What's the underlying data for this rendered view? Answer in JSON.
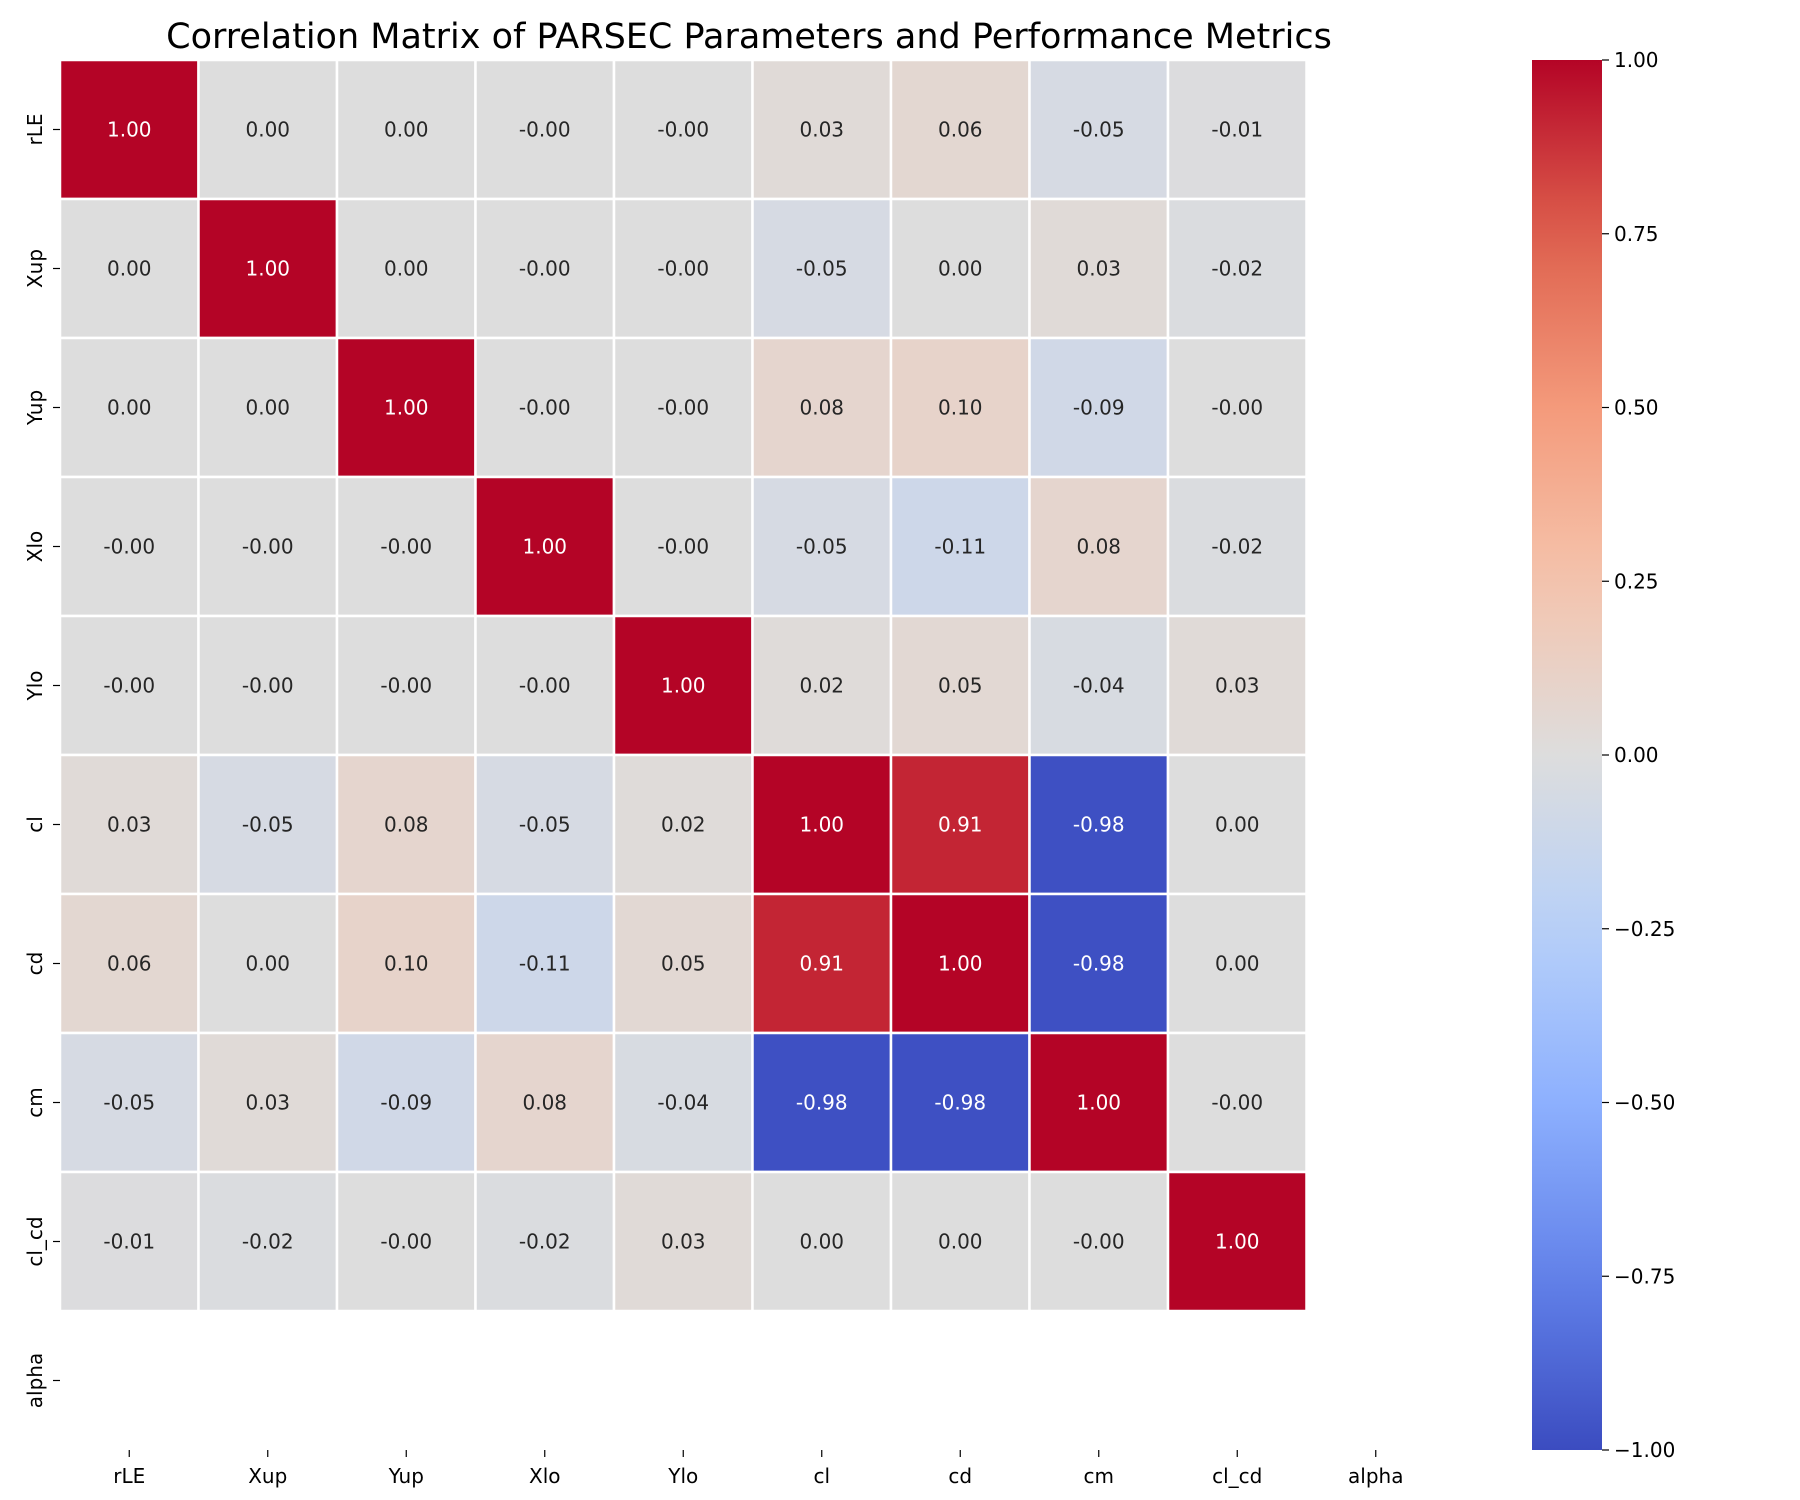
{
  "chart_data": {
    "type": "heatmap",
    "title": "Correlation Matrix of PARSEC Parameters and Performance Metrics",
    "xlabel": "",
    "ylabel": "",
    "row_labels": [
      "rLE",
      "Xup",
      "Yup",
      "Xlo",
      "Ylo",
      "cl",
      "cd",
      "cm",
      "cl_cd",
      "alpha"
    ],
    "col_labels": [
      "rLE",
      "Xup",
      "Yup",
      "Xlo",
      "Ylo",
      "cl",
      "cd",
      "cm",
      "cl_cd",
      "alpha"
    ],
    "values": [
      [
        1.0,
        0.0,
        0.0,
        -0.0,
        -0.0,
        0.03,
        0.06,
        -0.05,
        -0.01,
        null
      ],
      [
        0.0,
        1.0,
        0.0,
        -0.0,
        -0.0,
        -0.05,
        0.0,
        0.03,
        -0.02,
        null
      ],
      [
        0.0,
        0.0,
        1.0,
        -0.0,
        -0.0,
        0.08,
        0.1,
        -0.09,
        -0.0,
        null
      ],
      [
        -0.0,
        -0.0,
        -0.0,
        1.0,
        -0.0,
        -0.05,
        -0.11,
        0.08,
        -0.02,
        null
      ],
      [
        -0.0,
        -0.0,
        -0.0,
        -0.0,
        1.0,
        0.02,
        0.05,
        -0.04,
        0.03,
        null
      ],
      [
        0.03,
        -0.05,
        0.08,
        -0.05,
        0.02,
        1.0,
        0.91,
        -0.98,
        0.0,
        null
      ],
      [
        0.06,
        0.0,
        0.1,
        -0.11,
        0.05,
        0.91,
        1.0,
        -0.98,
        0.0,
        null
      ],
      [
        -0.05,
        0.03,
        -0.09,
        0.08,
        -0.04,
        -0.98,
        -0.98,
        1.0,
        -0.0,
        null
      ],
      [
        -0.01,
        -0.02,
        -0.0,
        -0.02,
        0.03,
        0.0,
        0.0,
        -0.0,
        1.0,
        null
      ],
      [
        null,
        null,
        null,
        null,
        null,
        null,
        null,
        null,
        null,
        null
      ]
    ],
    "cell_labels": [
      [
        "1.00",
        "0.00",
        "0.00",
        "-0.00",
        "-0.00",
        "0.03",
        "0.06",
        "-0.05",
        "-0.01",
        ""
      ],
      [
        "0.00",
        "1.00",
        "0.00",
        "-0.00",
        "-0.00",
        "-0.05",
        "0.00",
        "0.03",
        "-0.02",
        ""
      ],
      [
        "0.00",
        "0.00",
        "1.00",
        "-0.00",
        "-0.00",
        "0.08",
        "0.10",
        "-0.09",
        "-0.00",
        ""
      ],
      [
        "-0.00",
        "-0.00",
        "-0.00",
        "1.00",
        "-0.00",
        "-0.05",
        "-0.11",
        "0.08",
        "-0.02",
        ""
      ],
      [
        "-0.00",
        "-0.00",
        "-0.00",
        "-0.00",
        "1.00",
        "0.02",
        "0.05",
        "-0.04",
        "0.03",
        ""
      ],
      [
        "0.03",
        "-0.05",
        "0.08",
        "-0.05",
        "0.02",
        "1.00",
        "0.91",
        "-0.98",
        "0.00",
        ""
      ],
      [
        "0.06",
        "0.00",
        "0.10",
        "-0.11",
        "0.05",
        "0.91",
        "1.00",
        "-0.98",
        "0.00",
        ""
      ],
      [
        "-0.05",
        "0.03",
        "-0.09",
        "0.08",
        "-0.04",
        "-0.98",
        "-0.98",
        "1.00",
        "-0.00",
        ""
      ],
      [
        "-0.01",
        "-0.02",
        "-0.00",
        "-0.02",
        "0.03",
        "0.00",
        "0.00",
        "-0.00",
        "1.00",
        ""
      ],
      [
        "",
        "",
        "",
        "",
        "",
        "",
        "",
        "",
        "",
        ""
      ]
    ],
    "colormap": "coolwarm",
    "colorbar": {
      "range": [
        -1.0,
        1.0
      ],
      "ticks": [
        1.0,
        0.75,
        0.5,
        0.25,
        0.0,
        -0.25,
        -0.5,
        -0.75,
        -1.0
      ],
      "tick_labels": [
        "1.00",
        "0.75",
        "0.50",
        "0.25",
        "0.00",
        "−0.25",
        "−0.50",
        "−0.75",
        "−1.00"
      ],
      "placement": "right"
    },
    "grid": false,
    "cell_separator_color": "#ffffff"
  }
}
